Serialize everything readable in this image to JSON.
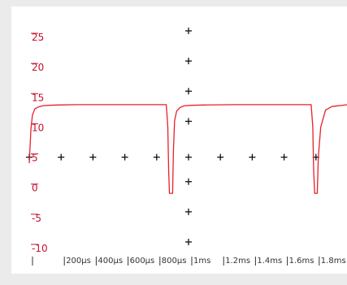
{
  "chart_data": {
    "type": "line",
    "title": "",
    "xlabel": "",
    "ylabel": "",
    "x_unit": "µs",
    "xlim": [
      0,
      2000
    ],
    "ylim": [
      -10,
      27
    ],
    "y_ticks": [
      25,
      20,
      15,
      10,
      5,
      0,
      -5,
      -10
    ],
    "y_tick_labels": [
      "25",
      "20",
      "15",
      "10",
      "5",
      "0",
      "-5",
      "-10"
    ],
    "x_ticks": [
      0,
      200,
      400,
      600,
      800,
      1000,
      1200,
      1400,
      1600,
      1800
    ],
    "x_tick_labels": [
      "",
      "200µs",
      "400µs",
      "600µs",
      "800µs",
      "1ms",
      "1.2ms",
      "1.4ms",
      "1.6ms",
      "1.8ms"
    ],
    "grid": "cross markers",
    "legend": "none",
    "colors": {
      "series": "#e8202a",
      "ytick_label": "#c8102e",
      "xtick_label": "#333333",
      "marker": "#111111",
      "background": "#ffffff",
      "frame": "#ebebeb"
    },
    "series": [
      {
        "name": "",
        "x": [
          0,
          10,
          20,
          35,
          55,
          80,
          120,
          180,
          300,
          500,
          700,
          860,
          870,
          875,
          880,
          900,
          905,
          912,
          925,
          945,
          970,
          1020,
          1100,
          1300,
          1500,
          1700,
          1770,
          1780,
          1785,
          1792,
          1808,
          1815,
          1830,
          1860,
          1900,
          2000
        ],
        "y": [
          4.0,
          9.5,
          12.0,
          13.0,
          13.3,
          13.5,
          13.6,
          13.65,
          13.7,
          13.7,
          13.7,
          13.7,
          10.0,
          3.0,
          -1.0,
          -1.0,
          6.0,
          11.0,
          12.6,
          13.2,
          13.5,
          13.6,
          13.65,
          13.7,
          13.7,
          13.7,
          13.7,
          10.0,
          3.0,
          -1.0,
          -1.0,
          5.0,
          10.0,
          12.8,
          13.4,
          13.7
        ]
      }
    ]
  }
}
